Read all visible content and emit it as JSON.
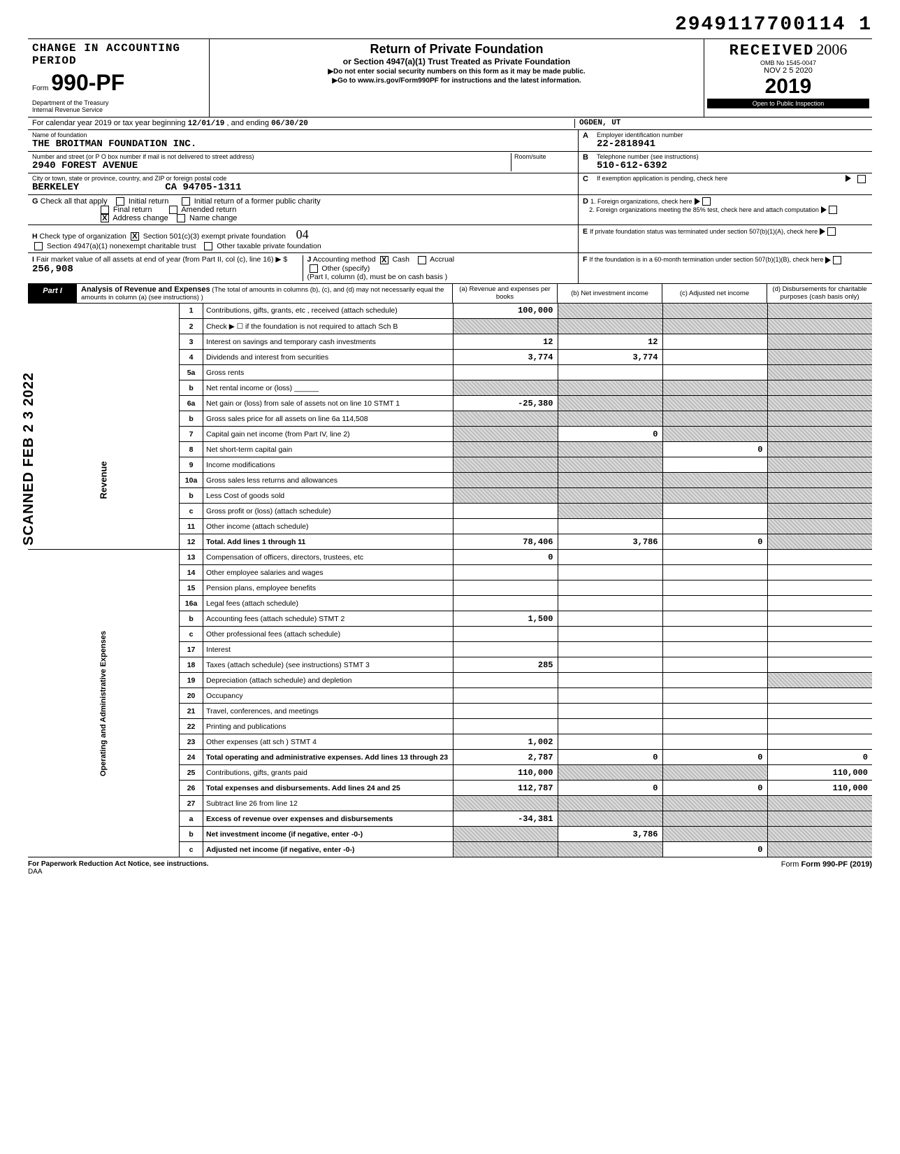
{
  "dln": "2949117700114 1",
  "header": {
    "change_period": "CHANGE IN ACCOUNTING PERIOD",
    "form_small": "Form",
    "form_big": "990-PF",
    "dept1": "Department of the Treasury",
    "dept2": "Internal Revenue Service",
    "title": "Return of Private Foundation",
    "subtitle": "or Section 4947(a)(1) Trust Treated as Private Foundation",
    "note1": "▶Do not enter social security numbers on this form as it may be made public.",
    "note2": "▶Go to www.irs.gov/Form990PF for instructions and the latest information.",
    "received": "RECEIVED",
    "received_hand": "2006",
    "received_date": "NOV 2 5 2020",
    "received_loc": "OGDEN, UT",
    "omb": "OMB No  1545-0047",
    "year": "2019",
    "inspect": "Open to Public Inspection"
  },
  "cal": {
    "prefix": "For calendar year 2019 or tax year beginning",
    "begin": "12/01/19",
    "mid": ", and ending",
    "end": "06/30/20"
  },
  "foundation": {
    "name_label": "Name of foundation",
    "name": "THE BROITMAN FOUNDATION INC.",
    "addr_label": "Number and street (or P O  box number if mail is not delivered to street address)",
    "room_label": "Room/suite",
    "addr": "2940 FOREST AVENUE",
    "city_label": "City or town, state or province, country, and ZIP or foreign postal code",
    "city": "BERKELEY",
    "zip": "CA 94705-1311"
  },
  "right_block": {
    "a_label": "Employer identification number",
    "a_val": "22-2818941",
    "b_label": "Telephone number (see instructions)",
    "b_val": "510-612-6392",
    "c_label": "If exemption application is pending, check here",
    "d1": "1.  Foreign organizations, check here",
    "d2": "2.  Foreign organizations meeting the 85% test, check here and attach computation",
    "e": "If private foundation status was terminated under section 507(b)(1)(A), check here",
    "f": "If the foundation is in a 60-month termination under section 507(b)(1)(B), check here"
  },
  "g": {
    "label": "Check all that apply",
    "initial": "Initial return",
    "initial_former": "Initial return of a former public charity",
    "final": "Final return",
    "amended": "Amended return",
    "addr_change": "Address change",
    "name_change": "Name change",
    "addr_change_checked": "X"
  },
  "h": {
    "label": "Check type of organization",
    "opt1": "Section 501(c)(3) exempt private foundation",
    "opt1_checked": "X",
    "opt2": "Section 4947(a)(1) nonexempt charitable trust",
    "opt3": "Other taxable private foundation",
    "hand": "04"
  },
  "i": {
    "label": "Fair market value of all assets at end of year (from Part II, col (c), line 16)",
    "val": "256,908"
  },
  "j": {
    "label": "Accounting method",
    "cash": "Cash",
    "cash_checked": "X",
    "accrual": "Accrual",
    "other": "Other (specify)",
    "note": "(Part I, column (d), must be on cash basis )"
  },
  "part1": {
    "label": "Part I",
    "title": "Analysis of Revenue and Expenses",
    "subtitle": "(The total of amounts in columns (b), (c), and (d) may not necessarily equal the amounts in column (a) (see instructions) )",
    "col_a": "(a) Revenue and expenses per books",
    "col_b": "(b) Net investment income",
    "col_c": "(c) Adjusted net income",
    "col_d": "(d) Disbursements for charitable purposes (cash basis only)"
  },
  "vcat": {
    "revenue": "Revenue",
    "expenses": "Operating and Administrative Expenses"
  },
  "rows": [
    {
      "n": "1",
      "desc": "Contributions, gifts, grants, etc , received (attach schedule)",
      "a": "100,000",
      "b_shade": true,
      "c_shade": true,
      "d_shade": true
    },
    {
      "n": "2",
      "desc": "Check ▶ ☐  if the foundation is not required to attach Sch  B",
      "a_shade": true,
      "b_shade": true,
      "c_shade": true,
      "d_shade": true
    },
    {
      "n": "3",
      "desc": "Interest on savings and temporary cash investments",
      "a": "12",
      "b": "12",
      "d_shade": true
    },
    {
      "n": "4",
      "desc": "Dividends and interest from securities",
      "a": "3,774",
      "b": "3,774",
      "d_shade": true
    },
    {
      "n": "5a",
      "desc": "Gross rents",
      "d_shade": true
    },
    {
      "n": "b",
      "desc": "Net rental income or (loss) ______",
      "a_shade": true,
      "b_shade": true,
      "c_shade": true,
      "d_shade": true
    },
    {
      "n": "6a",
      "desc": "Net gain or (loss) from sale of assets not on line 10  STMT 1",
      "a": "-25,380",
      "b_shade": true,
      "c_shade": true,
      "d_shade": true
    },
    {
      "n": "b",
      "desc": "Gross sales price for all assets on line 6a       114,508",
      "a_shade": true,
      "b_shade": true,
      "c_shade": true,
      "d_shade": true
    },
    {
      "n": "7",
      "desc": "Capital gain net income (from Part IV, line 2)",
      "a_shade": true,
      "b": "0",
      "c_shade": true,
      "d_shade": true
    },
    {
      "n": "8",
      "desc": "Net short-term capital gain",
      "a_shade": true,
      "b_shade": true,
      "c": "0",
      "d_shade": true
    },
    {
      "n": "9",
      "desc": "Income modifications",
      "a_shade": true,
      "b_shade": true,
      "d_shade": true
    },
    {
      "n": "10a",
      "desc": "Gross sales less returns and allowances",
      "a_shade": true,
      "b_shade": true,
      "c_shade": true,
      "d_shade": true
    },
    {
      "n": "b",
      "desc": "Less  Cost of goods sold",
      "a_shade": true,
      "b_shade": true,
      "c_shade": true,
      "d_shade": true
    },
    {
      "n": "c",
      "desc": "Gross profit or (loss) (attach schedule)",
      "b_shade": true,
      "d_shade": true
    },
    {
      "n": "11",
      "desc": "Other income (attach schedule)",
      "d_shade": true
    },
    {
      "n": "12",
      "desc": "Total. Add lines 1 through 11",
      "bold": true,
      "a": "78,406",
      "b": "3,786",
      "c": "0",
      "d_shade": true
    },
    {
      "n": "13",
      "desc": "Compensation of officers, directors, trustees, etc",
      "a": "0"
    },
    {
      "n": "14",
      "desc": "Other employee salaries and wages"
    },
    {
      "n": "15",
      "desc": "Pension plans, employee benefits"
    },
    {
      "n": "16a",
      "desc": "Legal fees (attach schedule)"
    },
    {
      "n": "b",
      "desc": "Accounting fees (attach schedule)     STMT 2",
      "a": "1,500"
    },
    {
      "n": "c",
      "desc": "Other professional fees (attach schedule)"
    },
    {
      "n": "17",
      "desc": "Interest"
    },
    {
      "n": "18",
      "desc": "Taxes (attach schedule) (see instructions)    STMT 3",
      "a": "285"
    },
    {
      "n": "19",
      "desc": "Depreciation (attach schedule) and depletion",
      "d_shade": true
    },
    {
      "n": "20",
      "desc": "Occupancy"
    },
    {
      "n": "21",
      "desc": "Travel, conferences, and meetings"
    },
    {
      "n": "22",
      "desc": "Printing and publications"
    },
    {
      "n": "23",
      "desc": "Other expenses (att  sch )            STMT 4",
      "a": "1,002"
    },
    {
      "n": "24",
      "desc": "Total operating and administrative expenses. Add lines 13 through 23",
      "bold": true,
      "a": "2,787",
      "b": "0",
      "c": "0",
      "d": "0"
    },
    {
      "n": "25",
      "desc": "Contributions, gifts, grants paid",
      "a": "110,000",
      "b_shade": true,
      "c_shade": true,
      "d": "110,000"
    },
    {
      "n": "26",
      "desc": "Total expenses and disbursements. Add lines 24 and 25",
      "bold": true,
      "a": "112,787",
      "b": "0",
      "c": "0",
      "d": "110,000"
    },
    {
      "n": "27",
      "desc": "Subtract line 26 from line 12",
      "a_shade": true,
      "b_shade": true,
      "c_shade": true,
      "d_shade": true
    },
    {
      "n": "a",
      "desc": "Excess of revenue over expenses and disbursements",
      "bold": true,
      "a": "-34,381",
      "b_shade": true,
      "c_shade": true,
      "d_shade": true
    },
    {
      "n": "b",
      "desc": "Net investment income (if negative, enter -0-)",
      "bold": true,
      "a_shade": true,
      "b": "3,786",
      "c_shade": true,
      "d_shade": true
    },
    {
      "n": "c",
      "desc": "Adjusted net income (if negative, enter -0-)",
      "bold": true,
      "a_shade": true,
      "b_shade": true,
      "c": "0",
      "d_shade": true
    }
  ],
  "footer": {
    "left": "For Paperwork Reduction Act Notice, see instructions.",
    "daa": "DAA",
    "right": "Form 990-PF (2019)"
  },
  "stamp": "SCANNED FEB 2 3 2022"
}
